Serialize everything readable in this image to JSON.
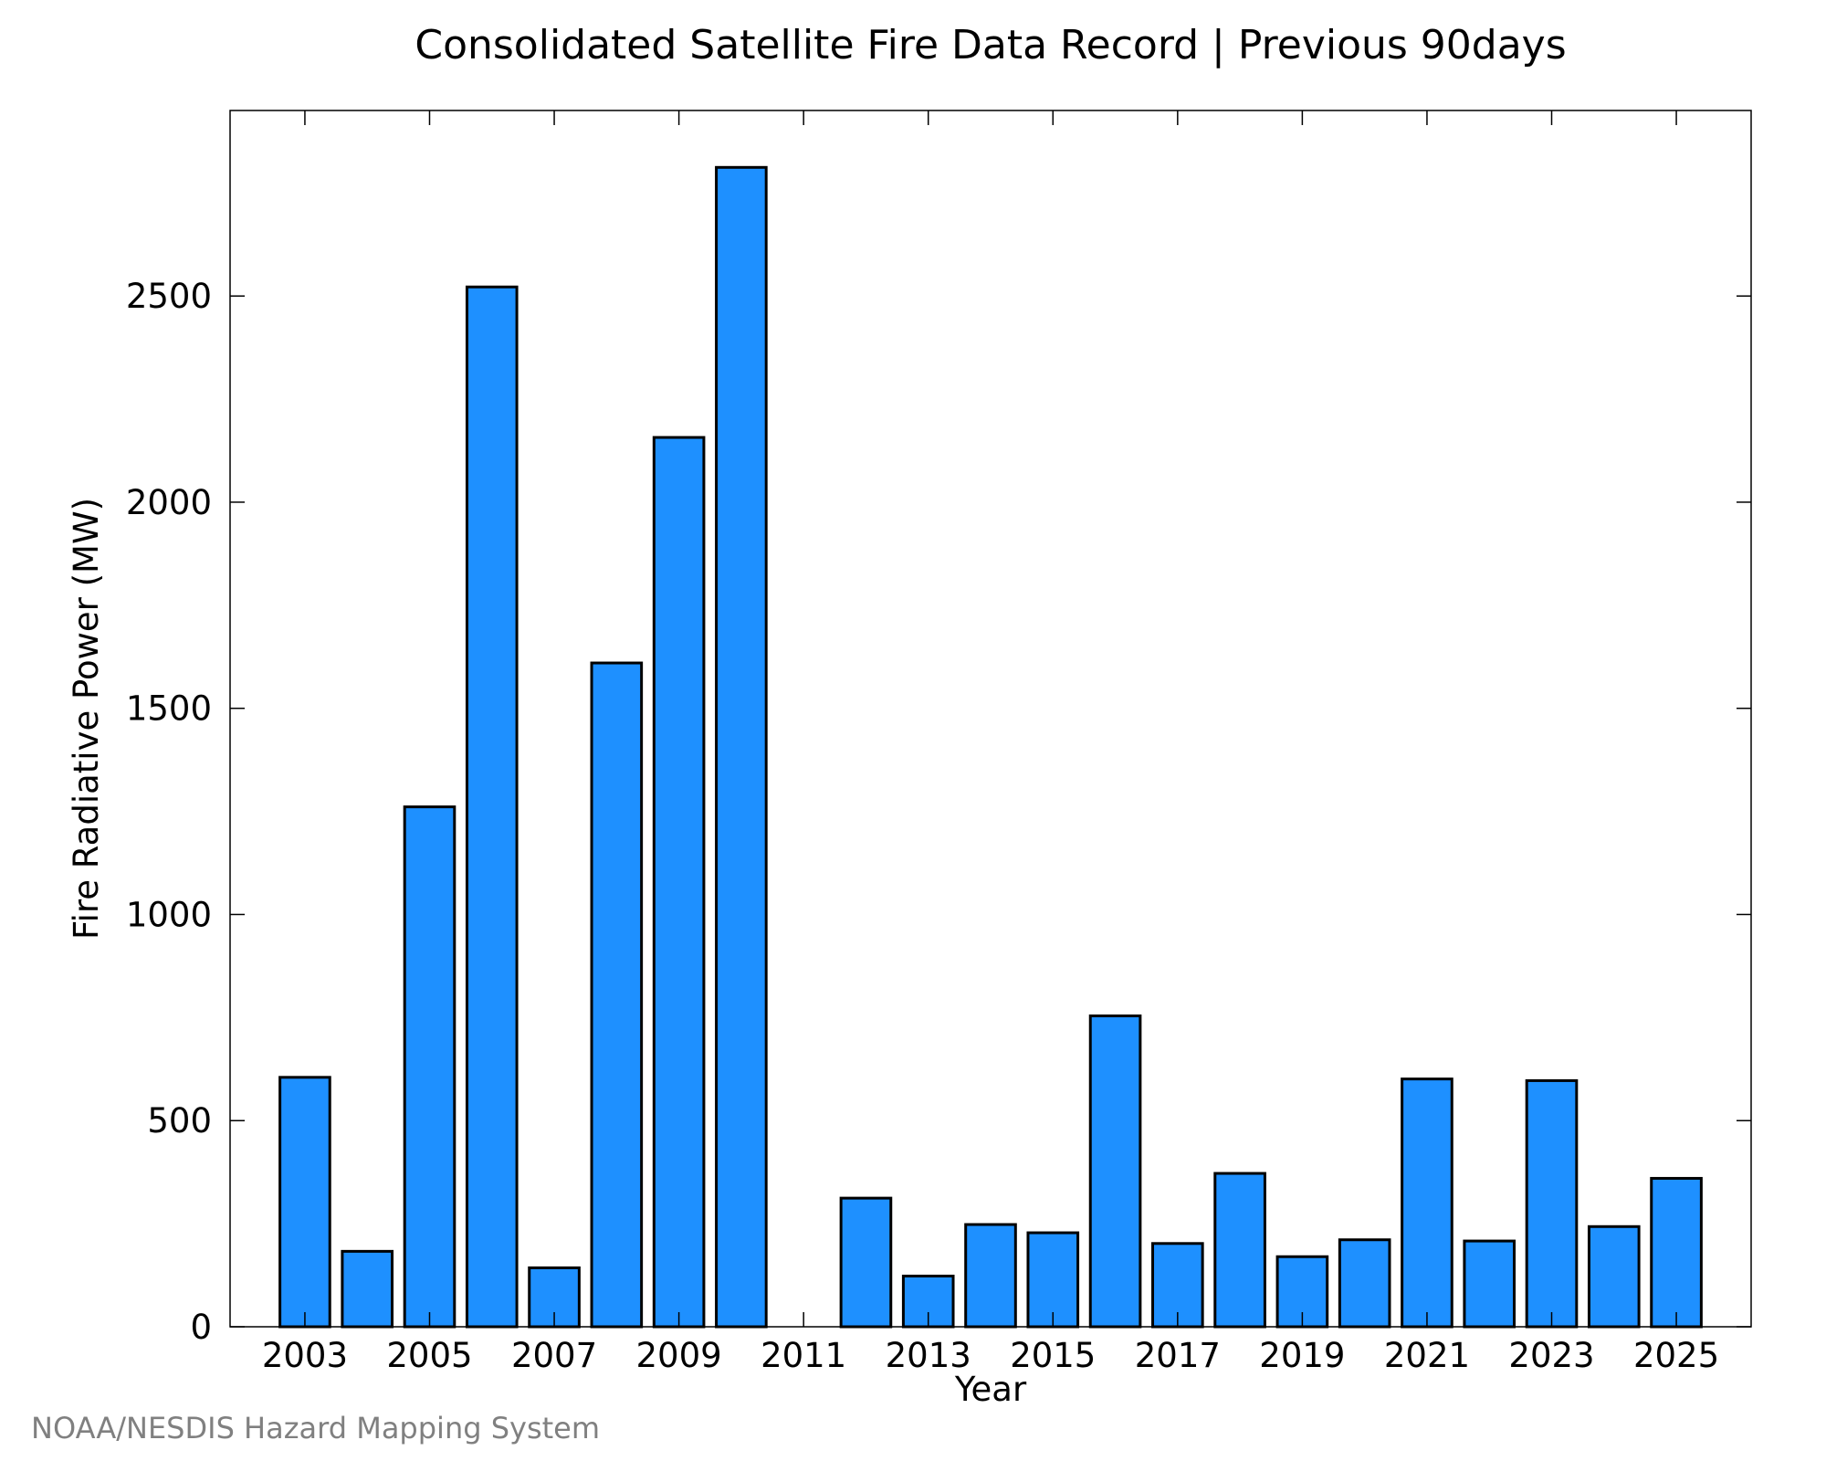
{
  "chart_data": {
    "type": "bar",
    "title": "Consolidated Satellite Fire Data Record | Previous 90days",
    "xlabel": "Year",
    "ylabel": "Fire Radiative Power (MW)",
    "categories": [
      "2003",
      "2004",
      "2005",
      "2006",
      "2007",
      "2008",
      "2009",
      "2010",
      "2011",
      "2012",
      "2013",
      "2014",
      "2015",
      "2016",
      "2017",
      "2018",
      "2019",
      "2020",
      "2021",
      "2022",
      "2023",
      "2024",
      "2025"
    ],
    "values": [
      605,
      183,
      1261,
      2522,
      143,
      1610,
      2157,
      2812,
      0,
      312,
      123,
      248,
      228,
      754,
      202,
      372,
      170,
      211,
      601,
      208,
      597,
      243,
      360
    ],
    "x_tick_labels": [
      "2003",
      "2005",
      "2007",
      "2009",
      "2011",
      "2013",
      "2015",
      "2017",
      "2019",
      "2021",
      "2023",
      "2025"
    ],
    "y_tick_labels": [
      "0",
      "500",
      "1000",
      "1500",
      "2000",
      "2500"
    ],
    "ylim": [
      0,
      2950
    ],
    "grid": false,
    "legend": "none",
    "bar_color": "#1e90ff",
    "bar_edge_color": "#000000",
    "credit": "NOAA/NESDIS Hazard Mapping System"
  }
}
